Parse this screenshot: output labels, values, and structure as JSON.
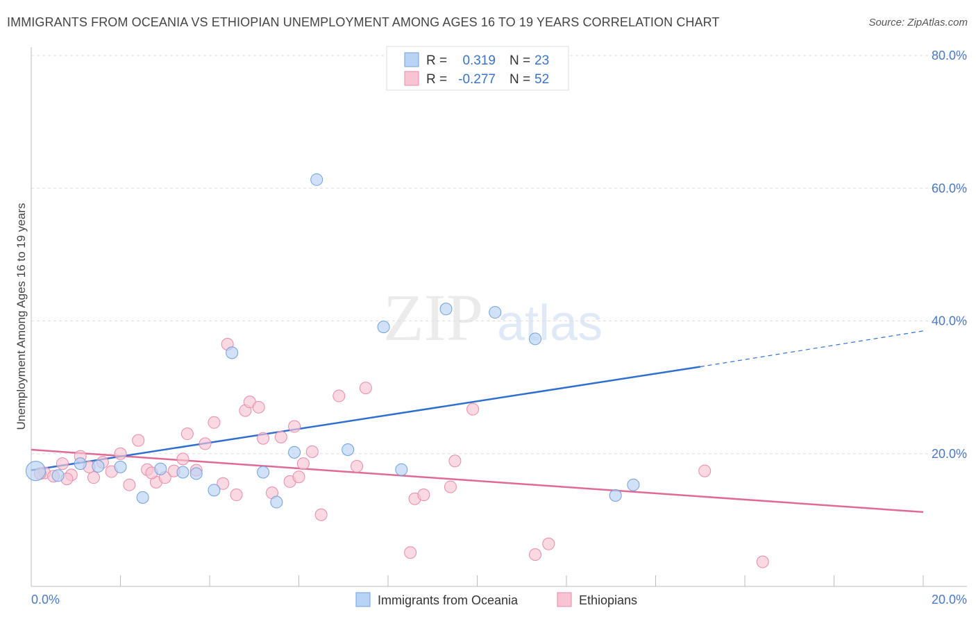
{
  "title": "IMMIGRANTS FROM OCEANIA VS ETHIOPIAN UNEMPLOYMENT AMONG AGES 16 TO 19 YEARS CORRELATION CHART",
  "source": "Source: ZipAtlas.com",
  "colors": {
    "blue_fill": "#b9d3f5",
    "blue_stroke": "#6f9fde",
    "blue_line": "#2f6fcf",
    "pink_fill": "#f8c4d4",
    "pink_stroke": "#e88aa8",
    "pink_line": "#e06a96",
    "axis_text": "#4a78c2"
  },
  "legend": {
    "rows": [
      {
        "r_label": "R =",
        "r_value": "0.319",
        "n_label": "N =",
        "n_value": "23"
      },
      {
        "r_label": "R =",
        "r_value": "-0.277",
        "n_label": "N =",
        "n_value": "52"
      }
    ]
  },
  "watermark": {
    "zip": "ZIP",
    "atlas": "atlas"
  },
  "chart_data": {
    "type": "scatter",
    "title": "IMMIGRANTS FROM OCEANIA VS ETHIOPIAN UNEMPLOYMENT AMONG AGES 16 TO 19 YEARS CORRELATION CHART",
    "xlabel": "",
    "ylabel": "Unemployment Among Ages 16 to 19 years",
    "xlim": [
      0,
      20
    ],
    "ylim": [
      0,
      80
    ],
    "x_tick_labels": [
      "0.0%",
      "20.0%"
    ],
    "y_tick_labels": [
      "20.0%",
      "40.0%",
      "60.0%",
      "80.0%"
    ],
    "y_ticks": [
      20,
      40,
      60,
      80
    ],
    "grid": true,
    "legend_position": "top-center",
    "series": [
      {
        "name": "Immigrants from Oceania",
        "color": "#b9d3f5",
        "points": [
          [
            0.1,
            17.4
          ],
          [
            0.6,
            16.7
          ],
          [
            1.1,
            18.5
          ],
          [
            1.5,
            18.1
          ],
          [
            2.0,
            18.0
          ],
          [
            2.5,
            13.4
          ],
          [
            2.9,
            17.7
          ],
          [
            3.4,
            17.2
          ],
          [
            3.7,
            17.0
          ],
          [
            4.1,
            14.5
          ],
          [
            4.5,
            35.2
          ],
          [
            5.2,
            17.2
          ],
          [
            5.5,
            12.7
          ],
          [
            5.9,
            20.2
          ],
          [
            6.4,
            61.3
          ],
          [
            7.1,
            20.6
          ],
          [
            7.9,
            39.1
          ],
          [
            8.3,
            17.6
          ],
          [
            9.3,
            41.8
          ],
          [
            10.4,
            41.3
          ],
          [
            11.3,
            37.3
          ],
          [
            13.1,
            13.7
          ],
          [
            13.5,
            15.3
          ]
        ],
        "trend": {
          "x": [
            0,
            15.0
          ],
          "y": [
            17.5,
            33.1
          ]
        },
        "trend_dashed": {
          "x": [
            15.0,
            20
          ],
          "y": [
            33.1,
            38.5
          ]
        }
      },
      {
        "name": "Ethiopians",
        "color": "#f8c4d4",
        "points": [
          [
            0.3,
            17.1
          ],
          [
            0.5,
            16.6
          ],
          [
            0.7,
            18.5
          ],
          [
            0.9,
            16.8
          ],
          [
            1.1,
            19.6
          ],
          [
            1.4,
            16.4
          ],
          [
            1.6,
            18.7
          ],
          [
            1.8,
            17.3
          ],
          [
            2.0,
            20.0
          ],
          [
            2.2,
            15.3
          ],
          [
            2.4,
            22.0
          ],
          [
            2.6,
            17.6
          ],
          [
            2.8,
            15.7
          ],
          [
            3.0,
            16.4
          ],
          [
            3.2,
            17.4
          ],
          [
            3.4,
            19.2
          ],
          [
            3.5,
            23.0
          ],
          [
            3.7,
            17.5
          ],
          [
            3.9,
            21.5
          ],
          [
            4.1,
            24.7
          ],
          [
            4.3,
            15.5
          ],
          [
            4.4,
            36.5
          ],
          [
            4.6,
            13.8
          ],
          [
            4.8,
            26.5
          ],
          [
            4.9,
            27.8
          ],
          [
            5.1,
            27.0
          ],
          [
            5.2,
            22.3
          ],
          [
            5.4,
            14.1
          ],
          [
            5.6,
            22.5
          ],
          [
            5.8,
            15.8
          ],
          [
            5.9,
            24.1
          ],
          [
            6.1,
            18.5
          ],
          [
            6.3,
            20.3
          ],
          [
            6.5,
            10.8
          ],
          [
            6.9,
            28.7
          ],
          [
            7.3,
            18.1
          ],
          [
            7.5,
            29.9
          ],
          [
            8.5,
            5.1
          ],
          [
            8.6,
            13.2
          ],
          [
            8.8,
            13.8
          ],
          [
            9.4,
            15.0
          ],
          [
            9.5,
            18.9
          ],
          [
            9.9,
            26.7
          ],
          [
            11.3,
            4.8
          ],
          [
            11.6,
            6.4
          ],
          [
            15.1,
            17.4
          ],
          [
            16.4,
            3.7
          ],
          [
            0.2,
            17.0
          ],
          [
            0.8,
            16.2
          ],
          [
            1.3,
            18.0
          ],
          [
            2.7,
            17.1
          ],
          [
            6.0,
            16.5
          ]
        ],
        "trend": {
          "x": [
            0,
            20
          ],
          "y": [
            20.6,
            11.2
          ]
        }
      }
    ]
  },
  "bottom_legend": {
    "items": [
      {
        "label": "Immigrants from Oceania"
      },
      {
        "label": "Ethiopians"
      }
    ]
  }
}
